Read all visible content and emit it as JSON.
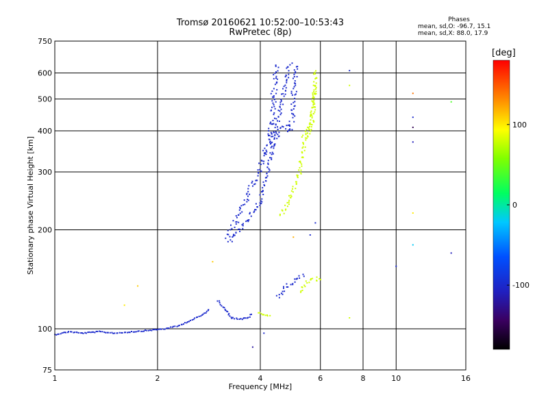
{
  "chart_data": {
    "type": "scatter",
    "title": "Tromsø 20160621 10:52:00–10:53:43",
    "subtitle": "RwPretec (8p)",
    "xlabel": "Frequency [MHz]",
    "ylabel": "Stationary phase Virtual Height [km]",
    "x_scale": "log",
    "y_scale": "log",
    "xlim": [
      1,
      16
    ],
    "ylim": [
      75,
      750
    ],
    "x_ticks": [
      1,
      2,
      4,
      6,
      8,
      10,
      16
    ],
    "y_ticks": [
      75,
      100,
      200,
      300,
      400,
      500,
      600,
      750
    ],
    "grid": true,
    "colorbar": {
      "label": "[deg]",
      "range": [
        -180,
        180
      ],
      "ticks": [
        100,
        0,
        -100
      ]
    },
    "phase_stats": {
      "title": "Phases",
      "line_o": "mean, sd,O: -96.7, 15.1",
      "line_x": "mean, sd,X:  88.0, 17.9"
    },
    "traces": [
      {
        "id": "e-layer",
        "phase": -100,
        "spread": 1.5,
        "points": [
          [
            1,
            96
          ],
          [
            1.1,
            98
          ],
          [
            1.2,
            97
          ],
          [
            1.35,
            98
          ],
          [
            1.5,
            97
          ],
          [
            1.7,
            98
          ],
          [
            1.9,
            99
          ],
          [
            2.1,
            100
          ],
          [
            2.3,
            102
          ],
          [
            2.5,
            106
          ],
          [
            2.7,
            110
          ],
          [
            2.85,
            115
          ]
        ]
      },
      {
        "id": "e-cusp",
        "phase": -100,
        "spread": 2,
        "points": [
          [
            3.0,
            122
          ],
          [
            3.15,
            115
          ],
          [
            3.3,
            108
          ],
          [
            3.5,
            107
          ],
          [
            3.7,
            108
          ],
          [
            3.8,
            112
          ]
        ]
      },
      {
        "id": "e-x",
        "phase": 80,
        "spread": 2,
        "points": [
          [
            3.95,
            112
          ],
          [
            4.1,
            110
          ],
          [
            4.3,
            110
          ]
        ]
      },
      {
        "id": "es-spread",
        "phase": -100,
        "spread": 6,
        "points": [
          [
            4.5,
            125
          ],
          [
            4.8,
            135
          ],
          [
            5.1,
            142
          ],
          [
            5.4,
            145
          ]
        ]
      },
      {
        "id": "es-x",
        "phase": 80,
        "spread": 6,
        "points": [
          [
            5.2,
            130
          ],
          [
            5.5,
            138
          ],
          [
            5.8,
            142
          ],
          [
            6.1,
            140
          ]
        ]
      },
      {
        "id": "f1-o",
        "phase": -100,
        "spread": 8,
        "points": [
          [
            3.2,
            190
          ],
          [
            3.35,
            205
          ],
          [
            3.5,
            230
          ],
          [
            3.7,
            260
          ],
          [
            3.9,
            290
          ],
          [
            4.1,
            330
          ],
          [
            4.25,
            380
          ],
          [
            4.35,
            450
          ],
          [
            4.4,
            560
          ],
          [
            4.45,
            640
          ]
        ]
      },
      {
        "id": "f1-o-lower",
        "phase": -100,
        "spread": 6,
        "points": [
          [
            3.25,
            185
          ],
          [
            3.4,
            195
          ],
          [
            3.6,
            210
          ],
          [
            3.8,
            225
          ],
          [
            4.0,
            245
          ],
          [
            4.15,
            280
          ],
          [
            4.3,
            330
          ],
          [
            4.45,
            400
          ],
          [
            4.6,
            480
          ],
          [
            4.75,
            560
          ],
          [
            4.85,
            620
          ],
          [
            4.95,
            645
          ]
        ]
      },
      {
        "id": "f2-o",
        "phase": -100,
        "spread": 8,
        "points": [
          [
            4.3,
            360
          ],
          [
            4.5,
            400
          ],
          [
            4.7,
            410
          ],
          [
            4.85,
            400
          ],
          [
            5.0,
            450
          ],
          [
            5.05,
            600
          ],
          [
            5.1,
            640
          ]
        ]
      },
      {
        "id": "f-x",
        "phase": 80,
        "spread": 6,
        "points": [
          [
            4.6,
            220
          ],
          [
            4.8,
            240
          ],
          [
            5.0,
            260
          ],
          [
            5.2,
            300
          ],
          [
            5.35,
            360
          ],
          [
            5.5,
            400
          ],
          [
            5.65,
            420
          ],
          [
            5.75,
            500
          ],
          [
            5.8,
            620
          ]
        ]
      },
      {
        "id": "f-x-upper",
        "phase": 80,
        "spread": 6,
        "points": [
          [
            5.3,
            380
          ],
          [
            5.45,
            390
          ],
          [
            5.6,
            400
          ],
          [
            5.7,
            440
          ],
          [
            5.8,
            560
          ]
        ]
      }
    ],
    "scatter_points": [
      {
        "x": 7.3,
        "y": 610,
        "phase": -100
      },
      {
        "x": 7.3,
        "y": 550,
        "phase": 80
      },
      {
        "x": 11.2,
        "y": 520,
        "phase": 140
      },
      {
        "x": 11.2,
        "y": 440,
        "phase": -100
      },
      {
        "x": 11.2,
        "y": 410,
        "phase": -150
      },
      {
        "x": 11.2,
        "y": 370,
        "phase": -110
      },
      {
        "x": 11.2,
        "y": 225,
        "phase": 100
      },
      {
        "x": 11.2,
        "y": 180,
        "phase": -20
      },
      {
        "x": 14.5,
        "y": 490,
        "phase": 40
      },
      {
        "x": 14.5,
        "y": 170,
        "phase": -110
      },
      {
        "x": 10.0,
        "y": 155,
        "phase": -100
      },
      {
        "x": 7.3,
        "y": 108,
        "phase": 80
      },
      {
        "x": 1.75,
        "y": 135,
        "phase": 110
      },
      {
        "x": 1.6,
        "y": 118,
        "phase": 100
      },
      {
        "x": 2.9,
        "y": 160,
        "phase": 110
      },
      {
        "x": 5.6,
        "y": 193,
        "phase": -100
      },
      {
        "x": 5.0,
        "y": 190,
        "phase": 120
      },
      {
        "x": 3.8,
        "y": 88,
        "phase": -120
      },
      {
        "x": 4.1,
        "y": 97,
        "phase": -100
      },
      {
        "x": 5.8,
        "y": 210,
        "phase": -100
      }
    ]
  }
}
